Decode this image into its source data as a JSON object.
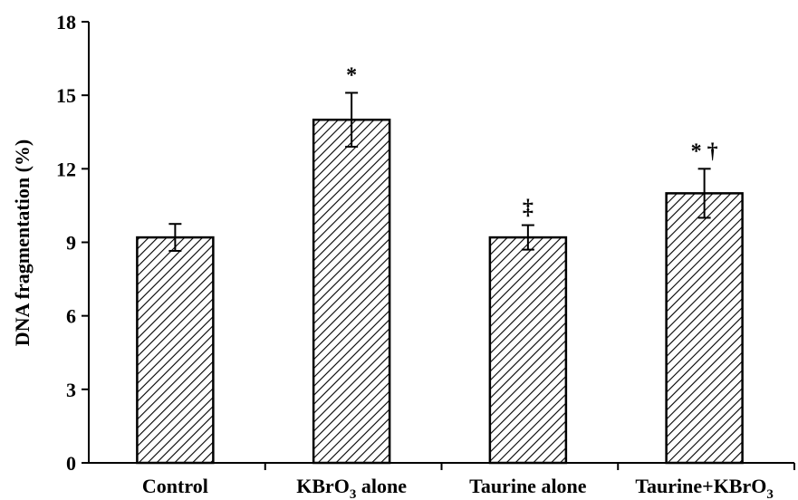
{
  "chart_data": {
    "type": "bar",
    "ylabel": "DNA fragmentation (%)",
    "xlabel": "",
    "ylim": [
      0,
      18
    ],
    "yticks": [
      0,
      3,
      6,
      9,
      12,
      15,
      18
    ],
    "bar_pattern": "diagonal-hatch",
    "colors": {
      "bar_fill": "#ffffff",
      "hatch": "#000000",
      "axis": "#000000"
    },
    "categories": [
      {
        "label": "Control",
        "sub": "",
        "suffix": ""
      },
      {
        "label": "KBrO",
        "sub": "3",
        "suffix": " alone"
      },
      {
        "label": "Taurine alone",
        "sub": "",
        "suffix": ""
      },
      {
        "label": "Taurine+KBrO",
        "sub": "3",
        "suffix": ""
      }
    ],
    "values": [
      9.2,
      14.0,
      9.2,
      11.0
    ],
    "errors": [
      0.55,
      1.1,
      0.5,
      1.0
    ],
    "significance": [
      "",
      "*",
      "‡",
      "* †"
    ]
  }
}
